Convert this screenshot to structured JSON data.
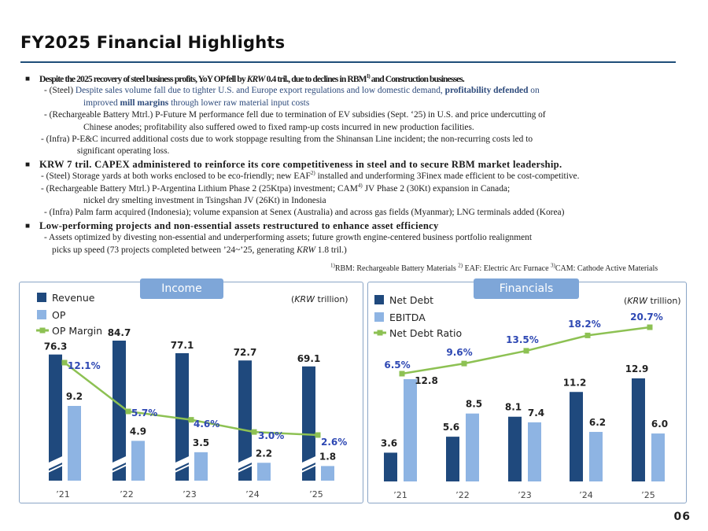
{
  "title": "FY2025 Financial Highlights",
  "bullets": {
    "b1": {
      "head_pre": "Despite the 2025 recovery of steel business profits, YoY OP fell by ",
      "head_krw": "KRW",
      "head_mid": " 0.4 tril., due to declines in RBM",
      "head_sup": "1)",
      "head_post": " and Construction businesses.",
      "steel_1": "- (Steel) ",
      "steel_2": "Despite sales volume fall due to tighter U.S. and Europe export regulations and low domestic demand, ",
      "steel_3": "profitability defended",
      "steel_4": " on",
      "steel_5": "improved ",
      "steel_6": "mill margins",
      "steel_7": " through lower raw material input costs",
      "rbm_1": "- (Rechargeable Battery Mtrl.) P-Future M performance fell due to termination of EV subsidies (Sept. ‘25) in U.S. and price undercutting of",
      "rbm_2": "Chinese anodes; profitability also suffered owed to fixed ramp-up costs incurred in new production facilities.",
      "infra_1": "- (Infra) P-E&C incurred additional costs due to work stoppage resulting from the Shinansan Line incident; the non-recurring costs led to",
      "infra_2": "significant operating loss."
    },
    "b2": {
      "head": "KRW 7 tril. CAPEX administered to reinforce its core competitiveness in steel and to secure RBM market leadership.",
      "steel_1": "- (Steel) Storage yards at both works enclosed to be eco-friendly; new EAF",
      "steel_sup": "2)",
      "steel_2": " installed and underforming 3Finex made efficient to be cost-competitive.",
      "rbm_1": "- (Rechargeable Battery Mtrl.) P-Argentina Lithium Phase 2 (25Ktpa) investment; CAM",
      "rbm_sup": "4)",
      "rbm_2": " JV Phase 2 (30Kt) expansion in Canada;",
      "rbm_3": "nickel dry smelting investment in Tsingshan JV (26Kt) in Indonesia",
      "infra": "- (Infra) Palm farm acquired (Indonesia); volume expansion at Senex (Australia) and across gas fields (Myanmar); LNG terminals added (Korea)"
    },
    "b3": {
      "head": "Low-performing projects and non-essential assets restructured to enhance asset efficiency",
      "line_1": "- Assets optimized by divesting non-essential and underperforming assets; future growth engine-centered business portfolio realignment",
      "line_2_pre": "picks up speed (73 projects completed between ’24~’25, generating ",
      "line_2_krw": "KRW",
      "line_2_post": " 1.8 tril.)"
    }
  },
  "footnote": {
    "n1": "1)",
    "t1": "RBM: Rechargeable Battery Materials ",
    "n2": "2)",
    "t2": " EAF: Electric Arc Furnace   ",
    "n3": "3)",
    "t3": "CAM: Cathode Active Materials"
  },
  "colors": {
    "dark_bar": "#1f497d",
    "light_bar": "#8eb4e3",
    "line": "#8dc153",
    "pct_text": "#2e48b3",
    "tag_bg": "#7ea6d8"
  },
  "chart_data": [
    {
      "type": "bar",
      "title": "Income",
      "unit_krw": "KRW",
      "unit_rest": " trillion)",
      "unit_open": "(",
      "categories": [
        "’21",
        "’22",
        "’23",
        "’24",
        "’25"
      ],
      "legend": [
        "Revenue",
        "OP",
        "OP Margin"
      ],
      "series": [
        {
          "name": "Revenue",
          "values": [
            76.3,
            84.7,
            77.1,
            72.7,
            69.1
          ],
          "labels": [
            "76.3",
            "84.7",
            "77.1",
            "72.7",
            "69.1"
          ]
        },
        {
          "name": "OP",
          "values": [
            9.2,
            4.9,
            3.5,
            2.2,
            1.8
          ],
          "labels": [
            "9.2",
            "4.9",
            "3.5",
            "2.2",
            "1.8"
          ]
        },
        {
          "name": "OP Margin",
          "values": [
            12.1,
            5.7,
            4.6,
            3.0,
            2.6
          ],
          "labels": [
            "12.1%",
            "5.7%",
            "4.6%",
            "3.0%",
            "2.6%"
          ]
        }
      ],
      "axis_break": true
    },
    {
      "type": "bar",
      "title": "Financials",
      "unit_krw": "KRW",
      "unit_rest": " trillion)",
      "unit_open": "(",
      "categories": [
        "’21",
        "’22",
        "’23",
        "’24",
        "’25"
      ],
      "legend": [
        "Net Debt",
        "EBITDA",
        "Net Debt Ratio"
      ],
      "series": [
        {
          "name": "Net Debt",
          "values": [
            3.6,
            5.6,
            8.1,
            11.2,
            12.9
          ],
          "labels": [
            "3.6",
            "5.6",
            "8.1",
            "11.2",
            "12.9"
          ]
        },
        {
          "name": "EBITDA",
          "values": [
            12.8,
            8.5,
            7.4,
            6.2,
            6.0
          ],
          "labels": [
            "12.8",
            "8.5",
            "7.4",
            "6.2",
            "6.0"
          ]
        },
        {
          "name": "Net Debt Ratio",
          "values": [
            6.5,
            9.6,
            13.5,
            18.2,
            20.7
          ],
          "labels": [
            "6.5%",
            "9.6%",
            "13.5%",
            "18.2%",
            "20.7%"
          ]
        }
      ]
    }
  ],
  "page_number": "06"
}
